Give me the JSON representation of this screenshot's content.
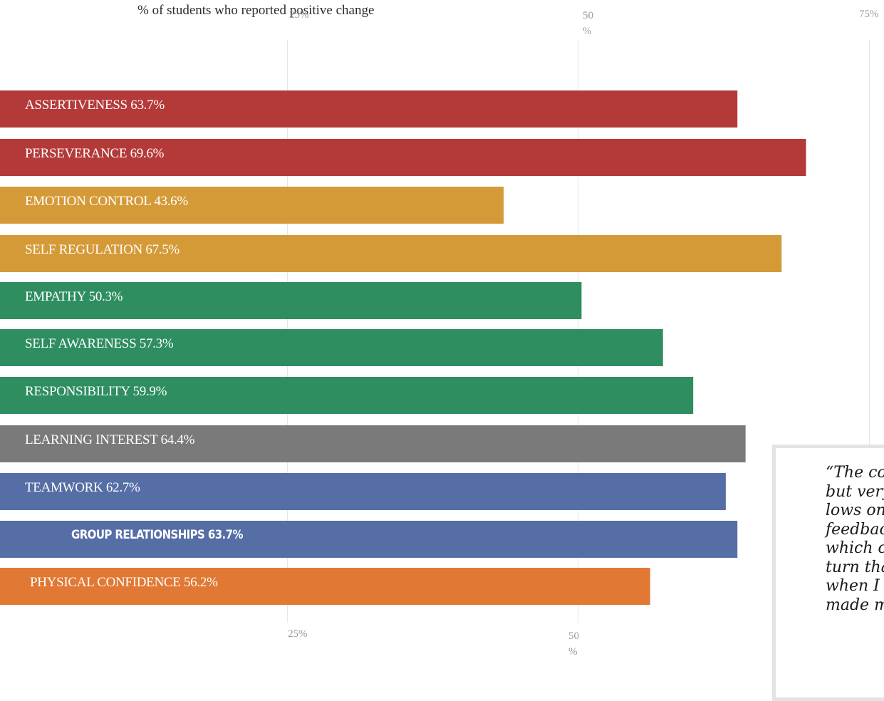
{
  "chart_data": {
    "type": "bar",
    "orientation": "horizontal",
    "subtitle": "% of students who reported positive change",
    "xlim": [
      0,
      75
    ],
    "ticks_top": [
      "25%",
      "50 %",
      "75%"
    ],
    "ticks_bottom": [
      "25%",
      "50 %"
    ],
    "tick_values": [
      25,
      50,
      75
    ],
    "categories": [
      "ASSERTIVENESS",
      "PERSEVERANCE",
      "EMOTION CONTROL",
      "SELF REGULATION",
      "EMPATHY",
      "SELF AWARENESS",
      "RESPONSIBILITY",
      "LEARNING INTEREST",
      "TEAMWORK",
      "GROUP RELATIONSHIPS",
      "PHYSICAL CONFIDENCE"
    ],
    "values": [
      63.7,
      69.6,
      43.6,
      67.5,
      50.3,
      57.3,
      59.9,
      64.4,
      62.7,
      63.7,
      56.2
    ],
    "labels": [
      "ASSERTIVENESS 63.7%",
      "PERSEVERANCE 69.6%",
      "EMOTION CONTROL 43.6%",
      "SELF REGULATION 67.5%",
      "EMPATHY 50.3%",
      "SELF AWARENESS 57.3%",
      "RESPONSIBILITY 59.9%",
      "LEARNING INTEREST 64.4%",
      "TEAMWORK 62.7%",
      "GROUP RELATIONSHIPS 63.7%",
      "PHYSICAL CONFIDENCE 56.2%"
    ],
    "colors": [
      "#b43a39",
      "#b43a39",
      "#d59a38",
      "#d59a38",
      "#2e8e60",
      "#2e8e60",
      "#2e8e60",
      "#7a7a7a",
      "#566ea6",
      "#566ea6",
      "#e17834"
    ],
    "grid": true
  },
  "quote": {
    "lines": [
      "“The cou",
      "but very l",
      "lows on t",
      "feedback",
      "which ca",
      "turn tha",
      "when I pr",
      "made my"
    ]
  }
}
